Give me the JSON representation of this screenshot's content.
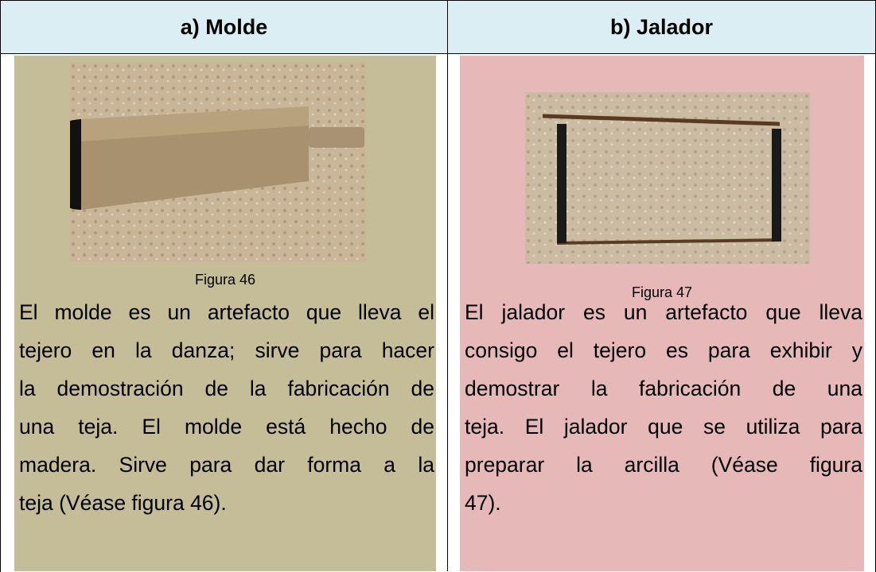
{
  "table": {
    "header": [
      "a) Molde",
      "b) Jalador"
    ],
    "cells": [
      {
        "caption": "Figura 46",
        "lines": [
          "El molde es un artefacto que lleva el",
          "tejero en la danza; sirve para hacer",
          "la demostración de la fabricación de",
          "una teja. El molde está hecho de",
          "madera. Sirve para dar forma a la",
          "teja (Véase figura 46)."
        ]
      },
      {
        "caption": "Figura 47",
        "lines": [
          "El jalador es un artefacto que lleva",
          "consigo el tejero es para exhibir y",
          "demostrar la fabricación de una",
          "teja. El jalador que se utiliza para",
          "preparar la arcilla (Véase figura",
          "47)."
        ]
      }
    ]
  }
}
